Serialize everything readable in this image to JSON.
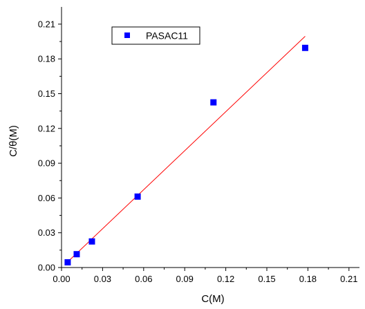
{
  "chart_data": {
    "type": "scatter",
    "xlabel": "C(M)",
    "ylabel": "C/θ(M)",
    "xlim": [
      0.0,
      0.225
    ],
    "ylim": [
      0.0,
      0.21
    ],
    "xticks": [
      0.0,
      0.03,
      0.06,
      0.09,
      0.12,
      0.15,
      0.18,
      0.21
    ],
    "yticks": [
      0.0,
      0.03,
      0.06,
      0.09,
      0.12,
      0.15,
      0.18,
      0.21
    ],
    "xtick_labels": [
      "0.00",
      "0.03",
      "0.06",
      "0.09",
      "0.12",
      "0.15",
      "0.18",
      "0.21"
    ],
    "ytick_labels": [
      "0.00",
      "0.03",
      "0.06",
      "0.09",
      "0.12",
      "0.15",
      "0.18",
      "0.21"
    ],
    "grid": false,
    "legend_position": "top-left",
    "series": [
      {
        "name": "PASAC11",
        "marker": "square",
        "color": "#0000ff",
        "x": [
          0.0045,
          0.0111,
          0.0222,
          0.0556,
          0.111,
          0.178
        ],
        "y": [
          0.0045,
          0.0115,
          0.0225,
          0.0612,
          0.1425,
          0.1895
        ]
      }
    ],
    "fit_line": {
      "color": "#ff0000",
      "x": [
        0.004,
        0.178
      ],
      "y": [
        0.0043,
        0.1995
      ]
    }
  }
}
